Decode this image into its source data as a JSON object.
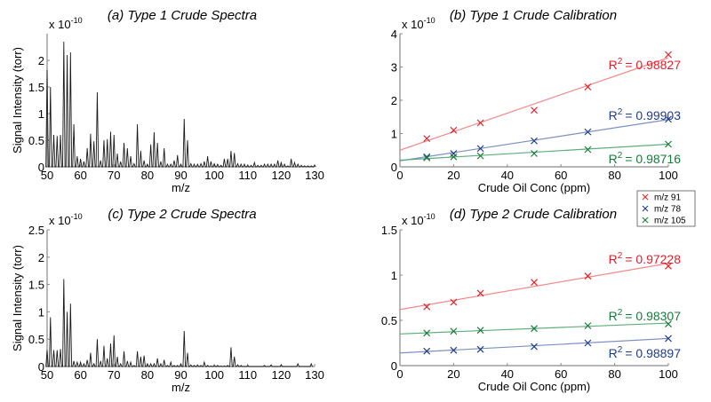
{
  "chart_data": [
    {
      "type": "line",
      "panel": "a",
      "title": "(a) Type 1 Crude Spectra",
      "xlabel": "m/z",
      "ylabel": "Signal Intensity (torr)",
      "y_multiplier": {
        "base": "x 10",
        "power": "-10"
      },
      "xlim": [
        50,
        130
      ],
      "ylim": [
        0,
        2.5
      ],
      "xticks": [
        "50",
        "60",
        "70",
        "80",
        "90",
        "100",
        "110",
        "120",
        "130"
      ],
      "yticks": [
        "0",
        "0.5",
        "1",
        "1.5",
        "2"
      ],
      "series": [
        {
          "color": "#1a1a1a",
          "peaks": [
            [
              50,
              1.82
            ],
            [
              51,
              1.5
            ],
            [
              52,
              0.6
            ],
            [
              53,
              0.58
            ],
            [
              54,
              0.6
            ],
            [
              55,
              2.35
            ],
            [
              56,
              2.1
            ],
            [
              57,
              2.15
            ],
            [
              58,
              0.8
            ],
            [
              59,
              0.2
            ],
            [
              60,
              0.15
            ],
            [
              61,
              0.1
            ],
            [
              62,
              0.35
            ],
            [
              63,
              0.62
            ],
            [
              64,
              0.48
            ],
            [
              65,
              1.4
            ],
            [
              66,
              0.12
            ],
            [
              67,
              0.5
            ],
            [
              68,
              0.52
            ],
            [
              69,
              0.66
            ],
            [
              70,
              0.6
            ],
            [
              71,
              0.25
            ],
            [
              72,
              0.1
            ],
            [
              73,
              0.45
            ],
            [
              74,
              0.35
            ],
            [
              75,
              0.2
            ],
            [
              76,
              0.06
            ],
            [
              77,
              0.8
            ],
            [
              78,
              0.3
            ],
            [
              79,
              0.12
            ],
            [
              80,
              0.05
            ],
            [
              81,
              0.42
            ],
            [
              82,
              0.65
            ],
            [
              83,
              0.45
            ],
            [
              84,
              0.1
            ],
            [
              85,
              0.35
            ],
            [
              86,
              0.05
            ],
            [
              87,
              0.05
            ],
            [
              88,
              0.12
            ],
            [
              89,
              0.22
            ],
            [
              90,
              0.05
            ],
            [
              91,
              0.9
            ],
            [
              92,
              0.5
            ],
            [
              93,
              0.06
            ],
            [
              94,
              0.05
            ],
            [
              95,
              0.05
            ],
            [
              96,
              0.06
            ],
            [
              97,
              0.1
            ],
            [
              98,
              0.2
            ],
            [
              99,
              0.1
            ],
            [
              100,
              0.06
            ],
            [
              101,
              0.05
            ],
            [
              102,
              0.03
            ],
            [
              103,
              0.15
            ],
            [
              104,
              0.15
            ],
            [
              105,
              0.3
            ],
            [
              106,
              0.26
            ],
            [
              107,
              0.06
            ],
            [
              108,
              0.05
            ],
            [
              109,
              0.05
            ],
            [
              110,
              0.03
            ],
            [
              111,
              0.03
            ],
            [
              112,
              0.08
            ],
            [
              113,
              0.03
            ],
            [
              114,
              0.03
            ],
            [
              115,
              0.05
            ],
            [
              116,
              0.05
            ],
            [
              117,
              0.05
            ],
            [
              118,
              0.05
            ],
            [
              119,
              0.12
            ],
            [
              120,
              0.08
            ],
            [
              121,
              0.05
            ],
            [
              122,
              0.02
            ],
            [
              123,
              0.15
            ],
            [
              124,
              0.08
            ],
            [
              125,
              0.05
            ],
            [
              126,
              0.03
            ],
            [
              127,
              0.02
            ],
            [
              128,
              0.02
            ],
            [
              129,
              0.02
            ],
            [
              130,
              0.03
            ]
          ]
        }
      ]
    },
    {
      "type": "scatter",
      "panel": "b",
      "title": "(b) Type 1 Crude Calibration",
      "xlabel": "Crude Oil Conc (ppm)",
      "ylabel": "",
      "y_multiplier": {
        "base": "x 10",
        "power": "-10"
      },
      "xlim": [
        0,
        100
      ],
      "ylim": [
        0,
        4
      ],
      "xticks": [
        "0",
        "20",
        "40",
        "60",
        "80",
        "100"
      ],
      "yticks": [
        "0",
        "1",
        "2",
        "3",
        "4"
      ],
      "series": [
        {
          "name": "m/z 91",
          "color": "#e0202a",
          "fit_color": "#f28a8a",
          "x": [
            10,
            20,
            30,
            50,
            70,
            100
          ],
          "y": [
            0.85,
            1.1,
            1.32,
            1.7,
            2.4,
            3.37
          ],
          "fit": [
            0.5,
            3.28
          ],
          "r2": {
            "symbol": "R",
            "power": "2",
            "value": "= 0.98827"
          }
        },
        {
          "name": "m/z 78",
          "color": "#1f3c88",
          "fit_color": "#7d90c2",
          "x": [
            10,
            20,
            30,
            50,
            70,
            100
          ],
          "y": [
            0.3,
            0.4,
            0.55,
            0.78,
            1.05,
            1.43
          ],
          "fit": [
            0.18,
            1.42
          ],
          "r2": {
            "symbol": "R",
            "power": "2",
            "value": "= 0.99903"
          }
        },
        {
          "name": "m/z 105",
          "color": "#177a3a",
          "fit_color": "#5eae7c",
          "x": [
            10,
            20,
            30,
            50,
            70,
            100
          ],
          "y": [
            0.27,
            0.3,
            0.33,
            0.4,
            0.52,
            0.68
          ],
          "fit": [
            0.2,
            0.68
          ],
          "r2": {
            "symbol": "R",
            "power": "2",
            "value": "= 0.98716"
          }
        }
      ]
    },
    {
      "type": "line",
      "panel": "c",
      "title": "(c) Type 2 Crude Spectra",
      "xlabel": "m/z",
      "ylabel": "Signal Intensity (torr)",
      "y_multiplier": {
        "base": "x 10",
        "power": "-10"
      },
      "xlim": [
        50,
        130
      ],
      "ylim": [
        0,
        2.5
      ],
      "xticks": [
        "50",
        "60",
        "70",
        "80",
        "90",
        "100",
        "110",
        "120",
        "130"
      ],
      "yticks": [
        "0",
        "0.5",
        "1",
        "1.5",
        "2",
        "2.5"
      ],
      "series": [
        {
          "color": "#1a1a1a",
          "peaks": [
            [
              50,
              0.3
            ],
            [
              51,
              0.9
            ],
            [
              52,
              0.3
            ],
            [
              53,
              0.3
            ],
            [
              54,
              0.32
            ],
            [
              55,
              1.6
            ],
            [
              56,
              1.0
            ],
            [
              57,
              1.15
            ],
            [
              58,
              0.1
            ],
            [
              59,
              0.08
            ],
            [
              60,
              0.08
            ],
            [
              61,
              0.05
            ],
            [
              62,
              0.12
            ],
            [
              63,
              0.25
            ],
            [
              64,
              0.05
            ],
            [
              65,
              0.5
            ],
            [
              66,
              0.1
            ],
            [
              67,
              0.38
            ],
            [
              68,
              0.15
            ],
            [
              69,
              0.42
            ],
            [
              70,
              0.57
            ],
            [
              71,
              0.18
            ],
            [
              72,
              0.05
            ],
            [
              73,
              0.28
            ],
            [
              74,
              0.1
            ],
            [
              75,
              0.08
            ],
            [
              76,
              0.02
            ],
            [
              77,
              0.28
            ],
            [
              78,
              0.18
            ],
            [
              79,
              0.2
            ],
            [
              80,
              0.05
            ],
            [
              81,
              0.05
            ],
            [
              82,
              0.05
            ],
            [
              83,
              0.15
            ],
            [
              84,
              0.05
            ],
            [
              85,
              0.12
            ],
            [
              86,
              0.02
            ],
            [
              87,
              0.08
            ],
            [
              88,
              0.02
            ],
            [
              89,
              0.02
            ],
            [
              90,
              0.05
            ],
            [
              91,
              0.65
            ],
            [
              92,
              0.25
            ],
            [
              93,
              0.03
            ],
            [
              94,
              0.02
            ],
            [
              95,
              0.03
            ],
            [
              96,
              0.02
            ],
            [
              97,
              0.08
            ],
            [
              98,
              0.02
            ],
            [
              99,
              0.01
            ],
            [
              100,
              0.02
            ],
            [
              101,
              0.02
            ],
            [
              102,
              0.01
            ],
            [
              103,
              0.01
            ],
            [
              104,
              0.02
            ],
            [
              105,
              0.35
            ],
            [
              106,
              0.18
            ],
            [
              107,
              0.03
            ],
            [
              108,
              0.02
            ],
            [
              110,
              0.02
            ],
            [
              115,
              0.02
            ],
            [
              117,
              0.03
            ],
            [
              120,
              0.03
            ],
            [
              125,
              0.05
            ],
            [
              129,
              0.05
            ]
          ]
        }
      ]
    },
    {
      "type": "scatter",
      "panel": "d",
      "title": "(d) Type 2 Crude Calibration",
      "xlabel": "Crude Oil Conc (ppm)",
      "ylabel": "",
      "y_multiplier": {
        "base": "x 10",
        "power": "-10"
      },
      "xlim": [
        0,
        100
      ],
      "ylim": [
        0,
        1.5
      ],
      "xticks": [
        "0",
        "20",
        "40",
        "60",
        "80",
        "100"
      ],
      "yticks": [
        "0",
        "0.5",
        "1",
        "1.5"
      ],
      "series": [
        {
          "name": "m/z 91",
          "color": "#e0202a",
          "fit_color": "#f28a8a",
          "x": [
            10,
            20,
            30,
            50,
            70,
            100
          ],
          "y": [
            0.65,
            0.7,
            0.8,
            0.92,
            0.99,
            1.1
          ],
          "fit": [
            0.62,
            1.13
          ],
          "r2": {
            "symbol": "R",
            "power": "2",
            "value": "= 0.97228"
          }
        },
        {
          "name": "m/z 105",
          "color": "#177a3a",
          "fit_color": "#5eae7c",
          "x": [
            10,
            20,
            30,
            50,
            70,
            100
          ],
          "y": [
            0.36,
            0.38,
            0.39,
            0.41,
            0.44,
            0.46
          ],
          "fit": [
            0.35,
            0.47
          ],
          "r2": {
            "symbol": "R",
            "power": "2",
            "value": "= 0.98307"
          }
        },
        {
          "name": "m/z 78",
          "color": "#1f3c88",
          "fit_color": "#7d90c2",
          "x": [
            10,
            20,
            30,
            50,
            70,
            100
          ],
          "y": [
            0.16,
            0.17,
            0.18,
            0.21,
            0.25,
            0.3
          ],
          "fit": [
            0.14,
            0.3
          ],
          "r2": {
            "symbol": "R",
            "power": "2",
            "value": "= 0.98897"
          }
        }
      ]
    }
  ],
  "legend": {
    "placement": "between right panels",
    "items": [
      {
        "label": "m/z 91",
        "color": "#e0202a"
      },
      {
        "label": "m/z 78",
        "color": "#1f3c88"
      },
      {
        "label": "m/z 105",
        "color": "#177a3a"
      }
    ]
  }
}
